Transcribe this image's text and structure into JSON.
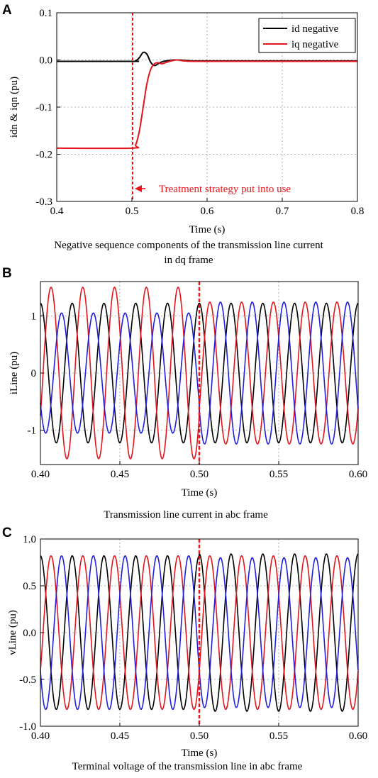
{
  "panels": [
    {
      "letter": "A",
      "caption_lines": [
        "Negative sequence components of the transmission line current",
        "in dq frame"
      ],
      "xlabel": "Time (s)",
      "ylabel": "idn & iqn (pu)",
      "xlim": [
        0.4,
        0.8
      ],
      "ylim": [
        -0.3,
        0.1
      ],
      "xticks": [
        "0.4",
        "0.5",
        "0.6",
        "0.7",
        "0.8"
      ],
      "yticks": [
        "0.1",
        "0.0",
        "-0.1",
        "-0.2",
        "-0.3"
      ],
      "legend": [
        "id negative",
        "iq negative"
      ],
      "annotation": "Treatment strategy put into use"
    },
    {
      "letter": "B",
      "caption_lines": [
        "Transmission line current in abc frame"
      ],
      "xlabel": "Time (s)",
      "ylabel": "iLine (pu)",
      "xlim": [
        0.4,
        0.6
      ],
      "ylim": [
        -1.6,
        1.6
      ],
      "xticks": [
        "0.40",
        "0.45",
        "0.50",
        "0.55",
        "0.60"
      ],
      "yticks": [
        "1",
        "0",
        "-1"
      ]
    },
    {
      "letter": "C",
      "caption_lines": [
        "Terminal voltage of the transmission line in abc frame"
      ],
      "xlabel": "Time (s)",
      "ylabel": "vLine (pu)",
      "xlim": [
        0.4,
        0.6
      ],
      "ylim": [
        -1.0,
        1.0
      ],
      "xticks": [
        "0.40",
        "0.45",
        "0.50",
        "0.55",
        "0.60"
      ],
      "yticks": [
        "1.0",
        "0.5",
        "0.0",
        "-0.5",
        "-1.0"
      ]
    }
  ],
  "colors": {
    "black": "#000000",
    "red": "#e4151b",
    "blue": "#1f1fe0",
    "grid": "#9a9a9a"
  },
  "chart_data": [
    {
      "type": "line",
      "xlim": [
        0.4,
        0.8
      ],
      "ylim": [
        -0.3,
        0.1
      ],
      "grid": true,
      "legend_position": "top-right",
      "event_x": 0.5,
      "series": [
        {
          "name": "id negative",
          "color": "black",
          "x": [
            0.4,
            0.5,
            0.505,
            0.51,
            0.515,
            0.52,
            0.525,
            0.53,
            0.535,
            0.54,
            0.55,
            0.56,
            0.57,
            0.58,
            0.6,
            0.8
          ],
          "y": [
            -0.003,
            -0.003,
            -0.002,
            0.005,
            0.016,
            0.012,
            -0.005,
            -0.012,
            -0.008,
            -0.004,
            -0.001,
            0.0,
            -0.001,
            -0.002,
            -0.002,
            -0.002
          ]
        },
        {
          "name": "iq negative",
          "color": "red",
          "x": [
            0.4,
            0.5,
            0.505,
            0.51,
            0.515,
            0.52,
            0.525,
            0.53,
            0.535,
            0.54,
            0.55,
            0.56,
            0.57,
            0.6,
            0.8
          ],
          "y": [
            -0.187,
            -0.187,
            -0.18,
            -0.15,
            -0.1,
            -0.05,
            -0.02,
            -0.008,
            -0.006,
            -0.008,
            -0.003,
            0.0,
            -0.002,
            -0.003,
            -0.003
          ]
        }
      ]
    },
    {
      "type": "line",
      "xlim": [
        0.4,
        0.6
      ],
      "ylim": [
        -1.6,
        1.6
      ],
      "grid": true,
      "event_x": 0.5,
      "frequency_hz": 50,
      "series": [
        {
          "color": "black",
          "amplitude_before": 1.22,
          "amplitude_after": 1.22,
          "phase_deg": 0
        },
        {
          "color": "red",
          "amplitude_before": 1.5,
          "amplitude_after": 1.24,
          "phase_deg": -120
        },
        {
          "color": "blue",
          "amplitude_before": 1.05,
          "amplitude_after": 1.24,
          "phase_deg": 120
        }
      ]
    },
    {
      "type": "line",
      "xlim": [
        0.4,
        0.6
      ],
      "ylim": [
        -1.0,
        1.0
      ],
      "grid": true,
      "event_x": 0.5,
      "frequency_hz": 50,
      "series": [
        {
          "color": "black",
          "amplitude_before": 0.82,
          "amplitude_after": 0.84,
          "phase_deg": 0
        },
        {
          "color": "red",
          "amplitude_before": 0.82,
          "amplitude_after": 0.82,
          "phase_deg": -120
        },
        {
          "color": "blue",
          "amplitude_before": 0.82,
          "amplitude_after": 0.8,
          "phase_deg": 120
        }
      ]
    }
  ]
}
